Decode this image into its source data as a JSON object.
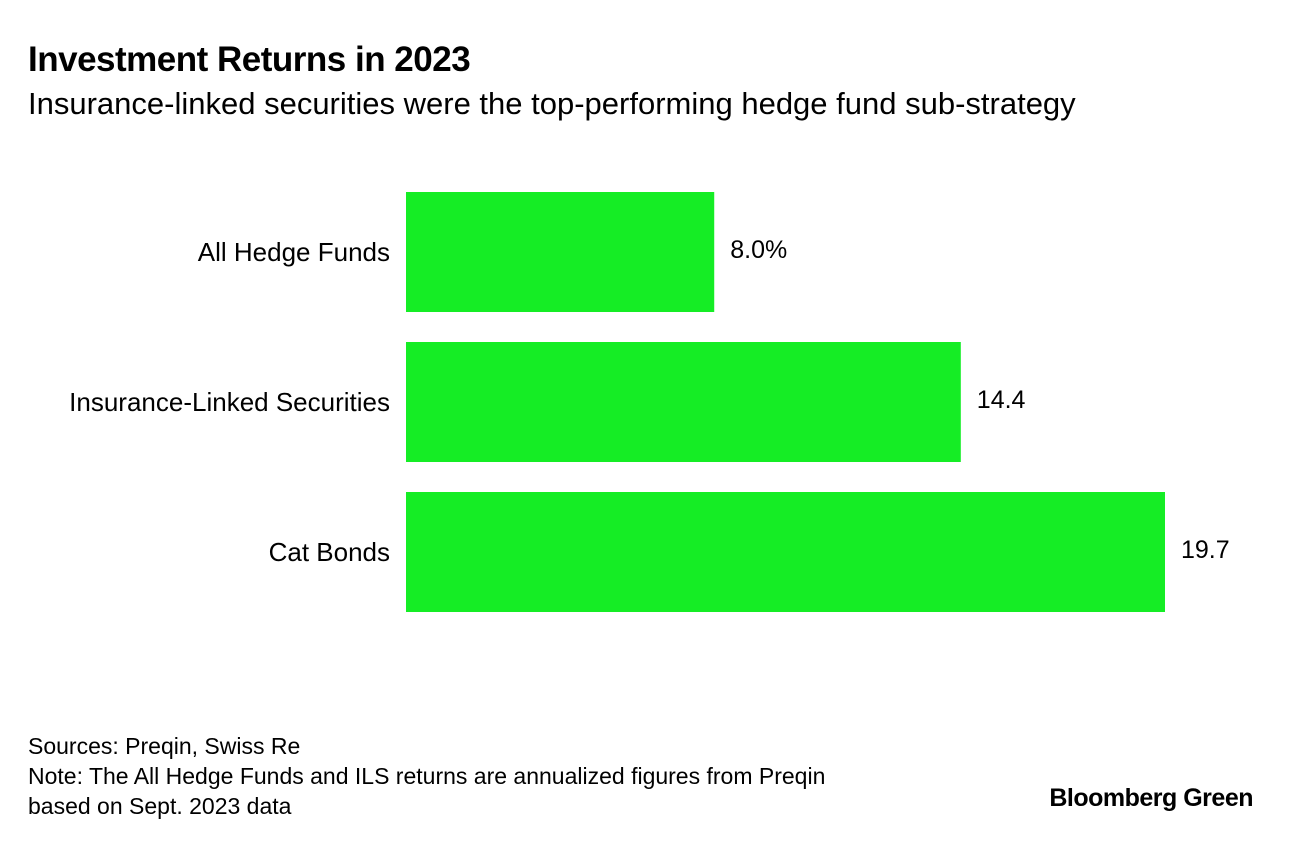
{
  "title": "Investment Returns in 2023",
  "subtitle": "Insurance-linked securities were the top-performing hedge fund sub-strategy",
  "chart_data": {
    "type": "bar",
    "orientation": "horizontal",
    "categories": [
      "All Hedge Funds",
      "Insurance-Linked Securities",
      "Cat Bonds"
    ],
    "values": [
      8.0,
      14.4,
      19.7
    ],
    "value_labels": [
      "8.0%",
      "14.4",
      "19.7"
    ],
    "unit": "%",
    "xlim": [
      0,
      19.7
    ],
    "grid": false,
    "bar_color": "#15ED25"
  },
  "footer": {
    "sources": "Sources: Preqin, Swiss Re",
    "note_line1": "Note: The All Hedge Funds and ILS returns are annualized figures from Preqin",
    "note_line2": "based on Sept. 2023 data"
  },
  "brand": "Bloomberg Green"
}
